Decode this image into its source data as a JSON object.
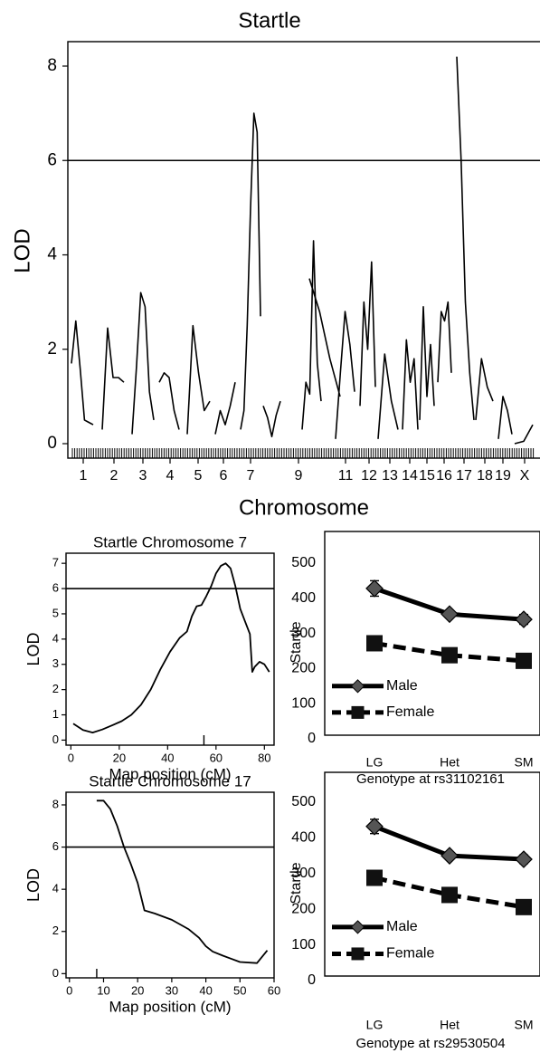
{
  "chart_data": [
    {
      "id": "genome",
      "type": "line",
      "title": "Startle",
      "xlabel": "Chromosome",
      "ylabel": "LOD",
      "ylim": [
        0,
        8.5
      ],
      "yticks": [
        0,
        2,
        4,
        6,
        8
      ],
      "threshold": 6.0,
      "chromosomes": [
        "1",
        "2",
        "3",
        "4",
        "5",
        "6",
        "7",
        "8",
        "9",
        "10",
        "11",
        "12",
        "13",
        "14",
        "15",
        "16",
        "17",
        "18",
        "19",
        "X"
      ],
      "tick_labels": [
        "1",
        "2",
        "3",
        "4",
        "5",
        "6",
        "7",
        "9",
        "11",
        "12",
        "13",
        "14",
        "15",
        "16",
        "17",
        "18",
        "19",
        "X"
      ],
      "grid": false,
      "chrom_profiles": [
        {
          "chrom": "1",
          "lod": [
            1.7,
            2.6,
            1.6,
            0.5,
            0.45,
            0.4
          ]
        },
        {
          "chrom": "2",
          "lod": [
            0.3,
            2.45,
            1.4,
            1.4,
            1.3
          ]
        },
        {
          "chrom": "3",
          "lod": [
            0.2,
            1.6,
            3.2,
            2.9,
            1.1,
            0.5
          ]
        },
        {
          "chrom": "4",
          "lod": [
            1.3,
            1.5,
            1.4,
            0.7,
            0.3
          ]
        },
        {
          "chrom": "5",
          "lod": [
            0.2,
            2.5,
            1.5,
            0.7,
            0.9
          ]
        },
        {
          "chrom": "6",
          "lod": [
            0.2,
            0.7,
            0.4,
            0.8,
            1.3
          ]
        },
        {
          "chrom": "7",
          "lod": [
            0.3,
            0.7,
            2.5,
            5.0,
            7.0,
            6.6,
            2.7
          ]
        },
        {
          "chrom": "8",
          "lod": [
            0.8,
            0.55,
            0.15,
            0.6,
            0.9
          ]
        },
        {
          "chrom": "9",
          "lod": [
            0.3,
            1.3,
            1.05,
            4.3,
            1.7,
            0.9
          ]
        },
        {
          "chrom": "10",
          "lod": [
            3.5,
            2.8,
            1.8,
            1.0
          ]
        },
        {
          "chrom": "11",
          "lod": [
            0.1,
            1.5,
            2.8,
            2.1,
            1.1
          ]
        },
        {
          "chrom": "12",
          "lod": [
            0.8,
            3.0,
            2.0,
            3.85,
            1.2
          ]
        },
        {
          "chrom": "13",
          "lod": [
            0.1,
            1.9,
            0.9,
            0.3
          ]
        },
        {
          "chrom": "14",
          "lod": [
            0.3,
            2.2,
            1.3,
            1.8,
            0.3
          ]
        },
        {
          "chrom": "15",
          "lod": [
            0.5,
            2.9,
            1.0,
            2.1,
            0.8
          ]
        },
        {
          "chrom": "16",
          "lod": [
            1.3,
            2.8,
            2.6,
            3.0,
            1.5
          ]
        },
        {
          "chrom": "17",
          "lod": [
            8.2,
            6.0,
            3.0,
            1.5,
            0.5
          ]
        },
        {
          "chrom": "18",
          "lod": [
            0.5,
            1.8,
            1.2,
            0.9
          ]
        },
        {
          "chrom": "19",
          "lod": [
            0.1,
            1.0,
            0.7,
            0.2
          ]
        },
        {
          "chrom": "X",
          "lod": [
            0.0,
            0.05,
            0.4
          ]
        }
      ]
    },
    {
      "id": "chr7",
      "type": "line",
      "title": "Startle Chromosome 7",
      "xlabel": "Map position (cM)",
      "ylabel": "LOD",
      "xlim": [
        -2,
        84
      ],
      "ylim": [
        -0.2,
        7.4
      ],
      "xticks": [
        0,
        20,
        40,
        60,
        80
      ],
      "yticks": [
        0,
        1,
        2,
        3,
        4,
        5,
        6,
        7
      ],
      "threshold": 6.0,
      "x": [
        1,
        5,
        9,
        13,
        17,
        21,
        25,
        29,
        33,
        37,
        41,
        45,
        48,
        50,
        52,
        54,
        56,
        58,
        60,
        62,
        64,
        66,
        68,
        70,
        72,
        74,
        75,
        76,
        78,
        80,
        82
      ],
      "y": [
        0.65,
        0.4,
        0.3,
        0.42,
        0.58,
        0.75,
        1.0,
        1.4,
        2.0,
        2.8,
        3.5,
        4.05,
        4.3,
        4.9,
        5.3,
        5.35,
        5.7,
        6.1,
        6.6,
        6.9,
        7.0,
        6.8,
        6.1,
        5.2,
        4.7,
        4.2,
        2.7,
        2.9,
        3.1,
        3.0,
        2.7
      ]
    },
    {
      "id": "geno7",
      "type": "line",
      "xlabel": "Genotype at rs31102161",
      "ylabel": "Startle",
      "categories": [
        "LG",
        "Het",
        "SM"
      ],
      "ylim": [
        0,
        500
      ],
      "yticks": [
        0,
        100,
        200,
        300,
        400,
        500
      ],
      "legend_position": "bottom-left",
      "series": [
        {
          "name": "Male",
          "values": [
            428,
            355,
            340
          ],
          "errors": [
            22,
            10,
            14
          ],
          "marker": "diamond",
          "dash": "solid"
        },
        {
          "name": "Female",
          "values": [
            272,
            238,
            222
          ],
          "errors": [
            0,
            0,
            0
          ],
          "marker": "square",
          "dash": "dashed"
        }
      ]
    },
    {
      "id": "chr17",
      "type": "line",
      "title": "Startle Chromosome 17",
      "xlabel": "Map position (cM)",
      "ylabel": "LOD",
      "xlim": [
        -1,
        60
      ],
      "ylim": [
        -0.2,
        8.6
      ],
      "xticks": [
        0,
        10,
        20,
        30,
        40,
        50,
        60
      ],
      "yticks": [
        0,
        2,
        4,
        6,
        8
      ],
      "threshold": 6.0,
      "x": [
        8,
        10,
        12,
        14,
        16,
        18,
        20,
        22,
        25,
        30,
        35,
        38,
        40,
        42,
        45,
        50,
        55,
        58
      ],
      "y": [
        8.2,
        8.2,
        7.8,
        7.0,
        6.0,
        5.2,
        4.3,
        3.0,
        2.85,
        2.55,
        2.1,
        1.7,
        1.3,
        1.05,
        0.85,
        0.55,
        0.5,
        1.1
      ]
    },
    {
      "id": "geno17",
      "type": "line",
      "xlabel": "Genotype at rs29530504",
      "ylabel": "Startle",
      "categories": [
        "LG",
        "Het",
        "SM"
      ],
      "ylim": [
        0,
        500
      ],
      "yticks": [
        0,
        100,
        200,
        300,
        400,
        500
      ],
      "legend_position": "bottom-left",
      "series": [
        {
          "name": "Male",
          "values": [
            432,
            350,
            340
          ],
          "errors": [
            20,
            8,
            12
          ],
          "marker": "diamond",
          "dash": "solid"
        },
        {
          "name": "Female",
          "values": [
            288,
            240,
            206
          ],
          "errors": [
            0,
            0,
            0
          ],
          "marker": "square",
          "dash": "dashed"
        }
      ]
    }
  ]
}
